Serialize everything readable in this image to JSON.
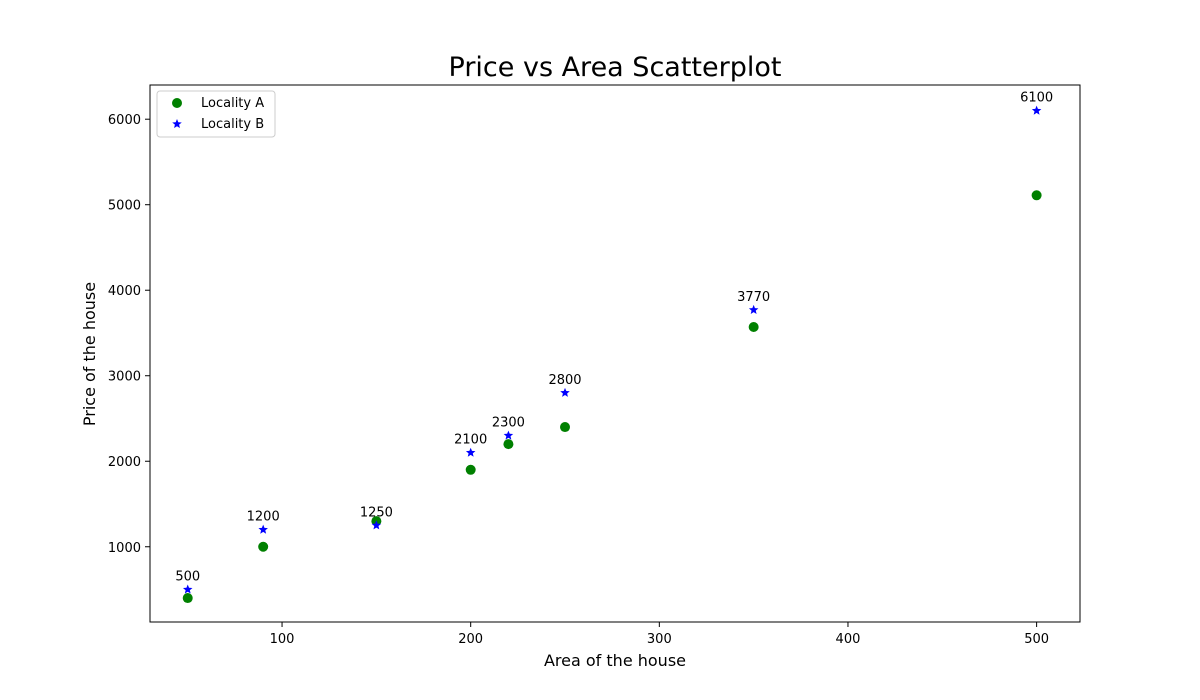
{
  "chart_data": {
    "type": "scatter",
    "title": "Price vs Area Scatterplot",
    "xlabel": "Area of the house",
    "ylabel": "Price of the house",
    "xlim": [
      30,
      523
    ],
    "ylim": [
      120,
      6400
    ],
    "xticks": [
      100,
      200,
      300,
      400,
      500
    ],
    "yticks": [
      1000,
      2000,
      3000,
      4000,
      5000,
      6000
    ],
    "grid": false,
    "legend_position": "top-left",
    "series": [
      {
        "name": "Locality A",
        "marker": "circle",
        "color": "#008000",
        "x": [
          50,
          90,
          150,
          200,
          220,
          250,
          350,
          500
        ],
        "y": [
          400,
          1000,
          1300,
          1900,
          2200,
          2400,
          3570,
          5110
        ]
      },
      {
        "name": "Locality B",
        "marker": "star",
        "color": "#0000ff",
        "x": [
          50,
          90,
          150,
          200,
          220,
          250,
          350,
          500
        ],
        "y": [
          500,
          1200,
          1250,
          2100,
          2300,
          2800,
          3770,
          6100
        ],
        "labels": [
          "500",
          "1200",
          "1250",
          "2100",
          "2300",
          "2800",
          "3770",
          "6100"
        ]
      }
    ]
  }
}
